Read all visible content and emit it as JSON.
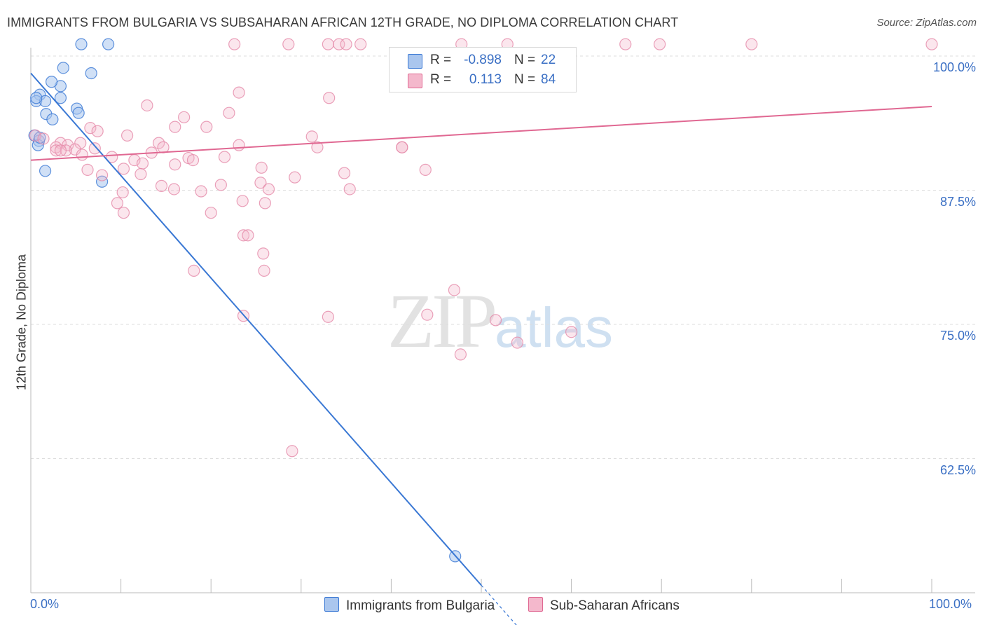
{
  "title": "IMMIGRANTS FROM BULGARIA VS SUBSAHARAN AFRICAN 12TH GRADE, NO DIPLOMA CORRELATION CHART",
  "source": "Source: ZipAtlas.com",
  "watermark": {
    "zip": "ZIP",
    "atlas": "atlas"
  },
  "legend": {
    "rows": [
      {
        "r_label": "R =",
        "r_value": "-0.898",
        "n_label": "N =",
        "n_value": "22"
      },
      {
        "r_label": "R =",
        "r_value": "0.113",
        "n_label": "N =",
        "n_value": "84"
      }
    ]
  },
  "colors": {
    "blue": "#3a78d4",
    "blue_fill": "#aac6ee",
    "pink": "#e06892",
    "pink_fill": "#f4b8cc"
  },
  "chart_data": {
    "type": "scatter",
    "title": "IMMIGRANTS FROM BULGARIA VS SUBSAHARAN AFRICAN 12TH GRADE, NO DIPLOMA CORRELATION CHART",
    "xlabel": "",
    "ylabel": "12th Grade, No Diploma",
    "xlim": [
      0,
      100
    ],
    "ylim": [
      50,
      100
    ],
    "x_tick_labels": [
      "0.0%",
      "100.0%"
    ],
    "y_ticks": [
      62.5,
      75.0,
      87.5,
      100.0
    ],
    "y_tick_labels": [
      "62.5%",
      "75.0%",
      "87.5%",
      "100.0%"
    ],
    "grid": "horizontal dashed",
    "legend_position": "bottom",
    "series": [
      {
        "name": "Immigrants from Bulgaria",
        "color": "#3a78d4",
        "points": [
          [
            5.6,
            101.1
          ],
          [
            8.6,
            101.1
          ],
          [
            1.0,
            96.4
          ],
          [
            3.3,
            97.2
          ],
          [
            3.6,
            98.9
          ],
          [
            6.7,
            98.4
          ],
          [
            2.3,
            97.6
          ],
          [
            0.6,
            95.8
          ],
          [
            1.6,
            95.8
          ],
          [
            3.3,
            96.1
          ],
          [
            0.6,
            96.1
          ],
          [
            5.1,
            95.1
          ],
          [
            1.7,
            94.6
          ],
          [
            5.3,
            94.7
          ],
          [
            2.4,
            94.1
          ],
          [
            0.4,
            92.6
          ],
          [
            0.9,
            92.1
          ],
          [
            0.8,
            91.7
          ],
          [
            1.6,
            89.3
          ],
          [
            7.9,
            88.3
          ],
          [
            47.1,
            53.4
          ],
          [
            1.0,
            92.4
          ]
        ],
        "trend": {
          "x": [
            0,
            50
          ],
          "y": [
            98.4,
            50.7
          ]
        }
      },
      {
        "name": "Sub-Saharan Africans",
        "color": "#e06892",
        "points": [
          [
            22.6,
            101.1
          ],
          [
            28.6,
            101.1
          ],
          [
            33.0,
            101.1
          ],
          [
            34.2,
            101.1
          ],
          [
            35.0,
            101.1
          ],
          [
            36.6,
            101.1
          ],
          [
            47.8,
            101.1
          ],
          [
            52.9,
            101.1
          ],
          [
            66.0,
            101.1
          ],
          [
            69.8,
            101.1
          ],
          [
            80.0,
            101.1
          ],
          [
            100.0,
            101.1
          ],
          [
            23.1,
            96.6
          ],
          [
            33.1,
            96.1
          ],
          [
            12.9,
            95.4
          ],
          [
            22.0,
            94.7
          ],
          [
            17.0,
            94.3
          ],
          [
            6.6,
            93.3
          ],
          [
            7.4,
            93.0
          ],
          [
            16.0,
            93.4
          ],
          [
            19.5,
            93.4
          ],
          [
            31.2,
            92.5
          ],
          [
            10.7,
            92.6
          ],
          [
            0.5,
            92.6
          ],
          [
            1.4,
            92.3
          ],
          [
            3.3,
            91.9
          ],
          [
            5.5,
            91.9
          ],
          [
            14.2,
            91.9
          ],
          [
            2.8,
            91.5
          ],
          [
            4.1,
            91.7
          ],
          [
            14.7,
            91.5
          ],
          [
            23.1,
            91.7
          ],
          [
            31.8,
            91.5
          ],
          [
            41.2,
            91.5
          ],
          [
            4.9,
            91.3
          ],
          [
            7.1,
            91.4
          ],
          [
            13.4,
            91.0
          ],
          [
            2.8,
            91.2
          ],
          [
            3.9,
            91.2
          ],
          [
            5.7,
            90.8
          ],
          [
            9.0,
            90.6
          ],
          [
            17.5,
            90.5
          ],
          [
            18.0,
            90.3
          ],
          [
            11.5,
            90.3
          ],
          [
            21.5,
            90.6
          ],
          [
            12.4,
            90.0
          ],
          [
            16.0,
            89.9
          ],
          [
            6.3,
            89.4
          ],
          [
            10.3,
            89.5
          ],
          [
            25.6,
            89.6
          ],
          [
            34.8,
            89.1
          ],
          [
            43.8,
            89.4
          ],
          [
            12.2,
            89.0
          ],
          [
            7.9,
            88.9
          ],
          [
            29.3,
            88.7
          ],
          [
            21.1,
            88.0
          ],
          [
            14.5,
            87.9
          ],
          [
            25.5,
            88.2
          ],
          [
            26.4,
            87.6
          ],
          [
            15.9,
            87.6
          ],
          [
            18.9,
            87.4
          ],
          [
            10.2,
            87.3
          ],
          [
            35.4,
            87.6
          ],
          [
            23.5,
            86.5
          ],
          [
            26.0,
            86.3
          ],
          [
            20.0,
            85.4
          ],
          [
            10.3,
            85.4
          ],
          [
            23.6,
            83.3
          ],
          [
            24.1,
            83.3
          ],
          [
            25.8,
            81.6
          ],
          [
            18.1,
            80.0
          ],
          [
            25.9,
            80.0
          ],
          [
            9.6,
            86.3
          ],
          [
            47.0,
            78.2
          ],
          [
            23.6,
            75.8
          ],
          [
            33.0,
            75.7
          ],
          [
            44.0,
            75.9
          ],
          [
            51.6,
            75.4
          ],
          [
            47.7,
            72.2
          ],
          [
            54.0,
            73.3
          ],
          [
            60.0,
            74.3
          ],
          [
            29.0,
            63.2
          ],
          [
            41.2,
            91.5
          ],
          [
            3.3,
            91.2
          ]
        ],
        "trend": {
          "x": [
            0,
            100
          ],
          "y": [
            90.3,
            95.3
          ]
        }
      }
    ]
  },
  "bottom_legend": [
    "Immigrants from Bulgaria",
    "Sub-Saharan Africans"
  ]
}
